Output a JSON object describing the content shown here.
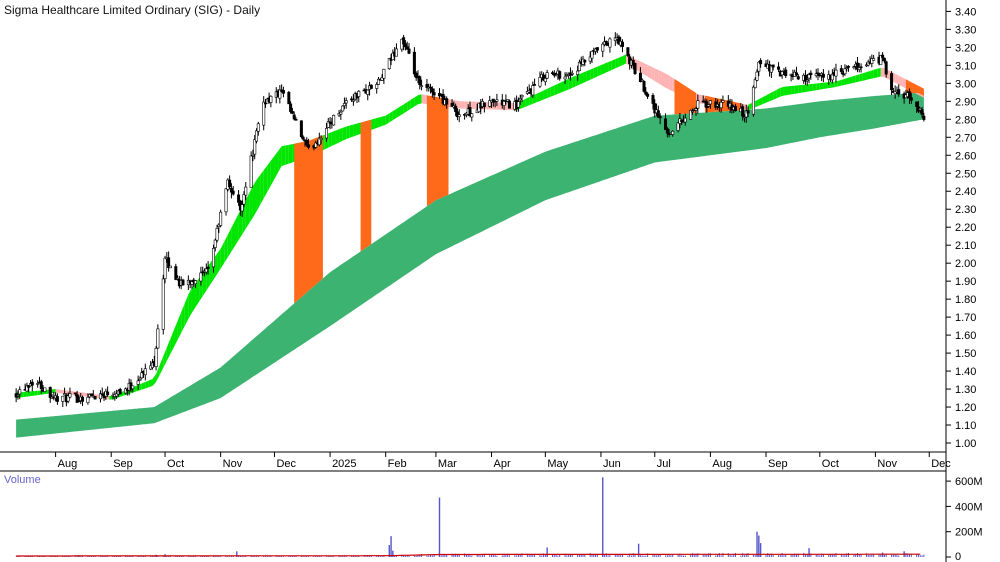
{
  "chart_data": [
    {
      "type": "candlestick",
      "title": "Sigma Healthcare Limited Ordinary (SIG) - Daily",
      "x_tick_labels": [
        "Aug",
        "Sep",
        "Oct",
        "Nov",
        "Dec",
        "2025",
        "Feb",
        "Mar",
        "Apr",
        "May",
        "Jun",
        "Jul",
        "Aug",
        "Sep",
        "Oct",
        "Nov",
        "Dec"
      ],
      "y_tick_labels": [
        "3.40",
        "3.30",
        "3.20",
        "3.10",
        "3.00",
        "2.90",
        "2.80",
        "2.70",
        "2.60",
        "2.50",
        "2.40",
        "2.30",
        "2.20",
        "2.10",
        "2.00",
        "1.90",
        "1.80",
        "1.70",
        "1.60",
        "1.50",
        "1.40",
        "1.30",
        "1.20",
        "1.10",
        "1.00"
      ],
      "ylim": [
        0.95,
        3.43
      ],
      "y_axis_position": "right",
      "grid": false,
      "colors": {
        "short_ribbon_up": "#00e600",
        "short_ribbon_down": "#ffb3b3",
        "long_ribbon": "#3cb371",
        "ribbon_crossover": "#ff6a1a",
        "candle": "#000000"
      },
      "price_anchors": [
        {
          "date": "2024-07-10",
          "close": 1.28
        },
        {
          "date": "2024-07-20",
          "close": 1.35
        },
        {
          "date": "2024-08-01",
          "close": 1.25
        },
        {
          "date": "2024-08-15",
          "close": 1.25
        },
        {
          "date": "2024-09-10",
          "close": 1.3
        },
        {
          "date": "2024-09-25",
          "close": 1.45
        },
        {
          "date": "2024-10-01",
          "close": 2.02
        },
        {
          "date": "2024-10-10",
          "close": 1.88
        },
        {
          "date": "2024-10-25",
          "close": 1.95
        },
        {
          "date": "2024-11-05",
          "close": 2.45
        },
        {
          "date": "2024-11-12",
          "close": 2.3
        },
        {
          "date": "2024-11-25",
          "close": 2.9
        },
        {
          "date": "2024-12-05",
          "close": 2.95
        },
        {
          "date": "2024-12-20",
          "close": 2.62
        },
        {
          "date": "2025-01-10",
          "close": 2.9
        },
        {
          "date": "2025-01-28",
          "close": 3.0
        },
        {
          "date": "2025-02-10",
          "close": 3.25
        },
        {
          "date": "2025-02-20",
          "close": 2.98
        },
        {
          "date": "2025-03-01",
          "close": 2.95
        },
        {
          "date": "2025-03-15",
          "close": 2.82
        },
        {
          "date": "2025-04-01",
          "close": 2.9
        },
        {
          "date": "2025-04-15",
          "close": 2.88
        },
        {
          "date": "2025-05-01",
          "close": 3.05
        },
        {
          "date": "2025-05-15",
          "close": 3.05
        },
        {
          "date": "2025-06-01",
          "close": 3.2
        },
        {
          "date": "2025-06-10",
          "close": 3.25
        },
        {
          "date": "2025-06-25",
          "close": 2.98
        },
        {
          "date": "2025-07-08",
          "close": 2.72
        },
        {
          "date": "2025-07-25",
          "close": 2.88
        },
        {
          "date": "2025-08-10",
          "close": 2.88
        },
        {
          "date": "2025-08-22",
          "close": 2.82
        },
        {
          "date": "2025-08-28",
          "close": 3.12
        },
        {
          "date": "2025-09-10",
          "close": 3.05
        },
        {
          "date": "2025-09-25",
          "close": 3.03
        },
        {
          "date": "2025-10-10",
          "close": 3.05
        },
        {
          "date": "2025-10-25",
          "close": 3.1
        },
        {
          "date": "2025-11-05",
          "close": 3.14
        },
        {
          "date": "2025-11-10",
          "close": 2.95
        },
        {
          "date": "2025-11-20",
          "close": 2.92
        },
        {
          "date": "2025-11-28",
          "close": 2.82
        }
      ],
      "short_term_ribbon": [
        {
          "date": "2024-07-10",
          "upper": 1.28,
          "lower": 1.26
        },
        {
          "date": "2024-08-01",
          "upper": 1.3,
          "lower": 1.29
        },
        {
          "date": "2024-09-01",
          "upper": 1.26,
          "lower": 1.25
        },
        {
          "date": "2024-09-25",
          "upper": 1.36,
          "lower": 1.33
        },
        {
          "date": "2024-10-15",
          "upper": 1.85,
          "lower": 1.72
        },
        {
          "date": "2024-11-01",
          "upper": 2.08,
          "lower": 1.98
        },
        {
          "date": "2024-11-20",
          "upper": 2.45,
          "lower": 2.28
        },
        {
          "date": "2024-12-05",
          "upper": 2.65,
          "lower": 2.55
        },
        {
          "date": "2024-12-20",
          "upper": 2.68,
          "lower": 2.6
        },
        {
          "date": "2025-01-10",
          "upper": 2.76,
          "lower": 2.7
        },
        {
          "date": "2025-02-01",
          "upper": 2.82,
          "lower": 2.78
        },
        {
          "date": "2025-02-20",
          "upper": 2.94,
          "lower": 2.9
        },
        {
          "date": "2025-03-15",
          "upper": 2.9,
          "lower": 2.87
        },
        {
          "date": "2025-04-15",
          "upper": 2.89,
          "lower": 2.86
        },
        {
          "date": "2025-05-15",
          "upper": 3.03,
          "lower": 2.98
        },
        {
          "date": "2025-06-15",
          "upper": 3.16,
          "lower": 3.12
        },
        {
          "date": "2025-07-08",
          "upper": 3.05,
          "lower": 2.98
        },
        {
          "date": "2025-07-25",
          "upper": 2.94,
          "lower": 2.9
        },
        {
          "date": "2025-08-22",
          "upper": 2.88,
          "lower": 2.86
        },
        {
          "date": "2025-09-10",
          "upper": 2.98,
          "lower": 2.94
        },
        {
          "date": "2025-10-10",
          "upper": 3.01,
          "lower": 2.99
        },
        {
          "date": "2025-11-05",
          "upper": 3.09,
          "lower": 3.05
        },
        {
          "date": "2025-11-28",
          "upper": 2.97,
          "lower": 2.93
        }
      ],
      "long_term_ribbon": [
        {
          "date": "2024-07-10",
          "upper": 1.13,
          "lower": 1.03
        },
        {
          "date": "2024-09-25",
          "upper": 1.2,
          "lower": 1.11
        },
        {
          "date": "2024-11-01",
          "upper": 1.42,
          "lower": 1.25
        },
        {
          "date": "2025-01-01",
          "upper": 1.95,
          "lower": 1.65
        },
        {
          "date": "2025-03-01",
          "upper": 2.35,
          "lower": 2.05
        },
        {
          "date": "2025-05-01",
          "upper": 2.62,
          "lower": 2.35
        },
        {
          "date": "2025-07-01",
          "upper": 2.82,
          "lower": 2.56
        },
        {
          "date": "2025-08-01",
          "upper": 2.84,
          "lower": 2.6
        },
        {
          "date": "2025-09-01",
          "upper": 2.86,
          "lower": 2.64
        },
        {
          "date": "2025-10-01",
          "upper": 2.9,
          "lower": 2.7
        },
        {
          "date": "2025-11-01",
          "upper": 2.93,
          "lower": 2.75
        },
        {
          "date": "2025-11-28",
          "upper": 2.95,
          "lower": 2.8
        }
      ],
      "crossover_zones": [
        {
          "from": "2024-12-12",
          "to": "2024-12-28"
        },
        {
          "from": "2025-01-18",
          "to": "2025-01-24"
        },
        {
          "from": "2025-02-24",
          "to": "2025-03-08"
        },
        {
          "from": "2025-07-12",
          "to": "2025-07-24"
        },
        {
          "from": "2025-07-29",
          "to": "2025-08-18"
        },
        {
          "from": "2025-11-18",
          "to": "2025-11-28"
        }
      ]
    },
    {
      "type": "bar",
      "title": "Volume",
      "y_tick_labels": [
        "600M",
        "400M",
        "200M",
        "0"
      ],
      "ylim": [
        0,
        680
      ],
      "y_unit": "M",
      "y_axis_position": "right",
      "colors": {
        "bars": "#5555cc",
        "average": "#cc0000"
      },
      "baseline_volume": 8,
      "average_volume": [
        {
          "date": "2024-07-10",
          "value": 8
        },
        {
          "date": "2025-02-01",
          "value": 10
        },
        {
          "date": "2025-03-05",
          "value": 20
        },
        {
          "date": "2025-11-28",
          "value": 22
        }
      ],
      "spikes": [
        {
          "date": "2024-08-14",
          "value": 14
        },
        {
          "date": "2024-09-26",
          "value": 18
        },
        {
          "date": "2024-10-01",
          "value": 22
        },
        {
          "date": "2024-11-10",
          "value": 45
        },
        {
          "date": "2025-02-04",
          "value": 165
        },
        {
          "date": "2025-02-03",
          "value": 95
        },
        {
          "date": "2025-02-05",
          "value": 50
        },
        {
          "date": "2025-03-03",
          "value": 470
        },
        {
          "date": "2025-05-02",
          "value": 75
        },
        {
          "date": "2025-06-02",
          "value": 630
        },
        {
          "date": "2025-06-22",
          "value": 105
        },
        {
          "date": "2025-08-27",
          "value": 200
        },
        {
          "date": "2025-08-28",
          "value": 170
        },
        {
          "date": "2025-08-29",
          "value": 110
        },
        {
          "date": "2025-09-25",
          "value": 70
        },
        {
          "date": "2025-11-05",
          "value": 35
        },
        {
          "date": "2025-11-17",
          "value": 45
        }
      ]
    }
  ]
}
